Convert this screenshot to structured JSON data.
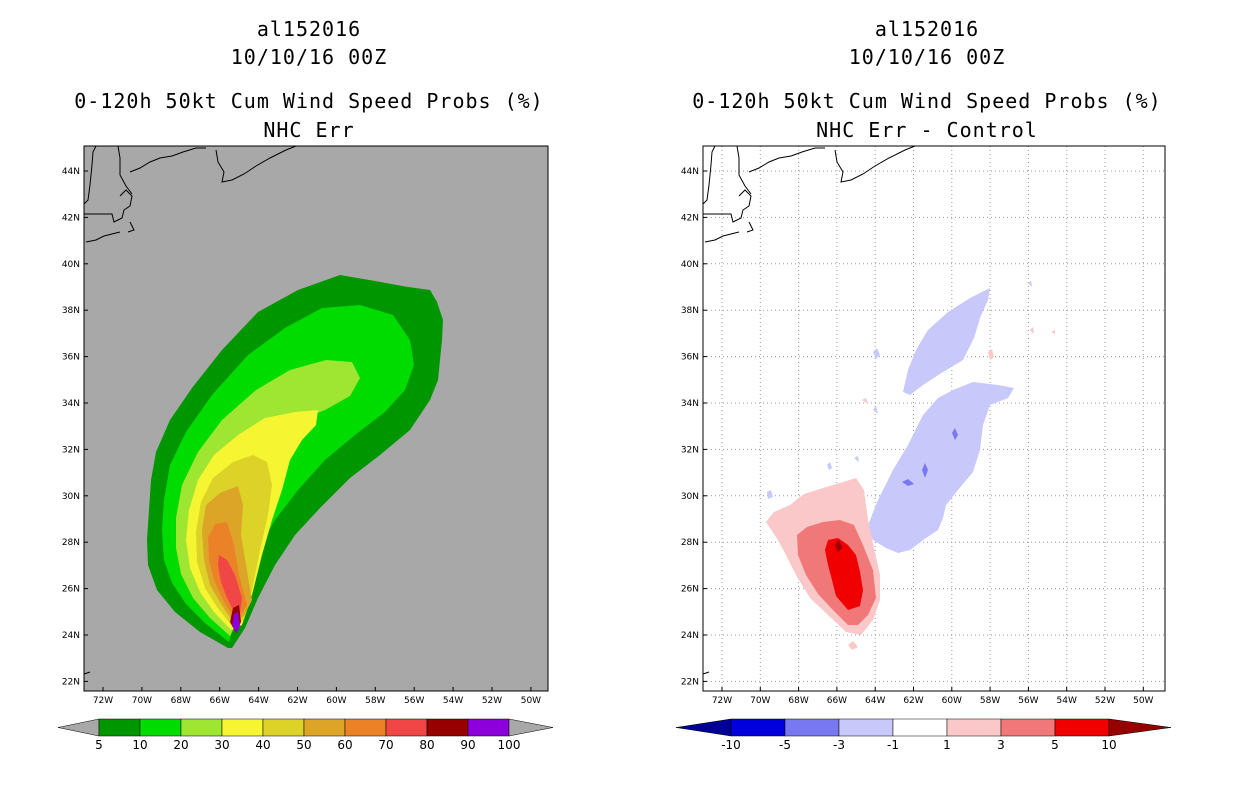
{
  "left_panel": {
    "title_line1": "al152016",
    "title_line2": "10/10/16 00Z",
    "title_line3": "0-120h 50kt Cum Wind Speed Probs (%)",
    "title_line4": "NHC Err",
    "background_color": "#a8a8a8",
    "colorbar": {
      "colors": [
        "#009600",
        "#00dc00",
        "#9ee631",
        "#f5f532",
        "#dcd228",
        "#dca528",
        "#eb8228",
        "#f04646",
        "#960000",
        "#8c00dc"
      ],
      "labels": [
        "5",
        "10",
        "20",
        "30",
        "40",
        "50",
        "60",
        "70",
        "80",
        "90",
        "100"
      ]
    }
  },
  "right_panel": {
    "title_line1": "al152016",
    "title_line2": "10/10/16 00Z",
    "title_line3": "0-120h 50kt Cum Wind Speed Probs (%)",
    "title_line4": "NHC Err - Control",
    "background_color": "#ffffff",
    "colorbar": {
      "colors": [
        "#0000dc",
        "#7878f0",
        "#c8c8fa",
        "#ffffff",
        "#fac8c8",
        "#f07878",
        "#f00000"
      ],
      "left_arrow_color": "#000096",
      "right_arrow_color": "#960000",
      "labels": [
        "-10",
        "-5",
        "-3",
        "-1",
        "1",
        "3",
        "5",
        "10"
      ]
    }
  },
  "axes": {
    "lat_labels": [
      "44N",
      "42N",
      "40N",
      "38N",
      "36N",
      "34N",
      "32N",
      "30N",
      "28N",
      "26N",
      "24N",
      "22N"
    ],
    "lon_labels": [
      "72W",
      "70W",
      "68W",
      "66W",
      "64W",
      "62W",
      "60W",
      "58W",
      "56W",
      "54W",
      "52W",
      "50W"
    ]
  }
}
